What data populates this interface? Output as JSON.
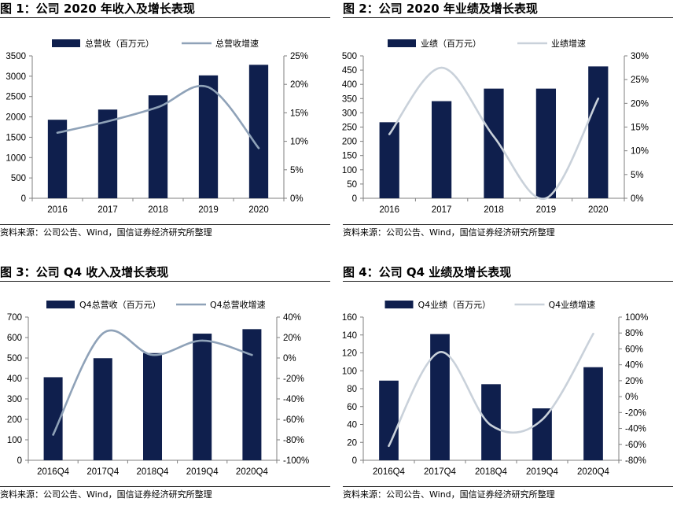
{
  "charts": [
    {
      "title": "图 1：公司 2020 年收入及增长表现",
      "source": "资料来源：公司公告、Wind，国信证券经济研究所整理",
      "chart_data": {
        "type": "bar",
        "categories": [
          "2016",
          "2017",
          "2018",
          "2019",
          "2020"
        ],
        "series": [
          {
            "name": "总营收（百万元）",
            "type": "bar",
            "axis": "left",
            "values": [
              1930,
              2180,
              2530,
              3020,
              3280
            ]
          },
          {
            "name": "总营收增速",
            "type": "line",
            "axis": "right",
            "values": [
              11.5,
              13.5,
              16.0,
              19.5,
              8.8
            ]
          }
        ],
        "ylim": [
          0,
          3500
        ],
        "yticks": [
          0,
          500,
          1000,
          1500,
          2000,
          2500,
          3000,
          3500
        ],
        "y2lim": [
          0,
          25
        ],
        "y2ticks": [
          0,
          5,
          10,
          15,
          20,
          25
        ],
        "y2unit": "%",
        "bar_color": "#0f1f4d",
        "line_color": "#8fa2b8",
        "legend": "top",
        "grid": false
      }
    },
    {
      "title": "图 2：公司 2020 年业绩及增长表现",
      "source": "资料来源：公司公告、Wind，国信证券经济研究所整理",
      "chart_data": {
        "type": "bar",
        "categories": [
          "2016",
          "2017",
          "2018",
          "2019",
          "2020"
        ],
        "series": [
          {
            "name": "业绩（百万元）",
            "type": "bar",
            "axis": "left",
            "values": [
              267,
              341,
              385,
              385,
              463
            ]
          },
          {
            "name": "业绩增速",
            "type": "line",
            "axis": "right",
            "values": [
              13.5,
              27.5,
              13.0,
              0.0,
              21.0
            ]
          }
        ],
        "ylim": [
          0,
          500
        ],
        "yticks": [
          0,
          50,
          100,
          150,
          200,
          250,
          300,
          350,
          400,
          450,
          500
        ],
        "y2lim": [
          0,
          30
        ],
        "y2ticks": [
          0,
          5,
          10,
          15,
          20,
          25,
          30
        ],
        "y2unit": "%",
        "bar_color": "#0f1f4d",
        "line_color": "#c9d1da",
        "legend": "top",
        "grid": false
      }
    },
    {
      "title": "图 3：公司 Q4 收入及增长表现",
      "source": "资料来源：公司公告、Wind，国信证券经济研究所整理",
      "chart_data": {
        "type": "bar",
        "categories": [
          "2016Q4",
          "2017Q4",
          "2018Q4",
          "2019Q4",
          "2020Q4"
        ],
        "series": [
          {
            "name": "Q4总营收（百万元）",
            "type": "bar",
            "axis": "left",
            "values": [
              406,
              499,
              524,
              619,
              641
            ]
          },
          {
            "name": "Q4总营收增速",
            "type": "line",
            "axis": "right",
            "values": [
              -75,
              24,
              3,
              17,
              3
            ]
          }
        ],
        "ylim": [
          0,
          700
        ],
        "yticks": [
          0,
          100,
          200,
          300,
          400,
          500,
          600,
          700
        ],
        "y2lim": [
          -100,
          40
        ],
        "y2ticks": [
          -100,
          -80,
          -60,
          -40,
          -20,
          0,
          20,
          40
        ],
        "y2unit": "%",
        "bar_color": "#0f1f4d",
        "line_color": "#8fa2b8",
        "legend": "top",
        "grid": false
      }
    },
    {
      "title": "图 4：公司 Q4 业绩及增长表现",
      "source": "资料来源：公司公告、Wind，国信证券经济研究所整理",
      "chart_data": {
        "type": "bar",
        "categories": [
          "2016Q4",
          "2017Q4",
          "2018Q4",
          "2019Q4",
          "2020Q4"
        ],
        "series": [
          {
            "name": "Q4业绩（百万元）",
            "type": "bar",
            "axis": "left",
            "values": [
              89,
              141,
              85,
              58,
              104
            ]
          },
          {
            "name": "Q4业绩增速",
            "type": "line",
            "axis": "right",
            "values": [
              -62,
              56,
              -36,
              -29,
              79
            ]
          }
        ],
        "ylim": [
          0,
          160
        ],
        "yticks": [
          0,
          20,
          40,
          60,
          80,
          100,
          120,
          140,
          160
        ],
        "y2lim": [
          -80,
          100
        ],
        "y2ticks": [
          -80,
          -60,
          -40,
          -20,
          0,
          20,
          40,
          60,
          80,
          100
        ],
        "y2unit": "%",
        "bar_color": "#0f1f4d",
        "line_color": "#c9d1da",
        "legend": "top",
        "grid": false
      }
    }
  ]
}
